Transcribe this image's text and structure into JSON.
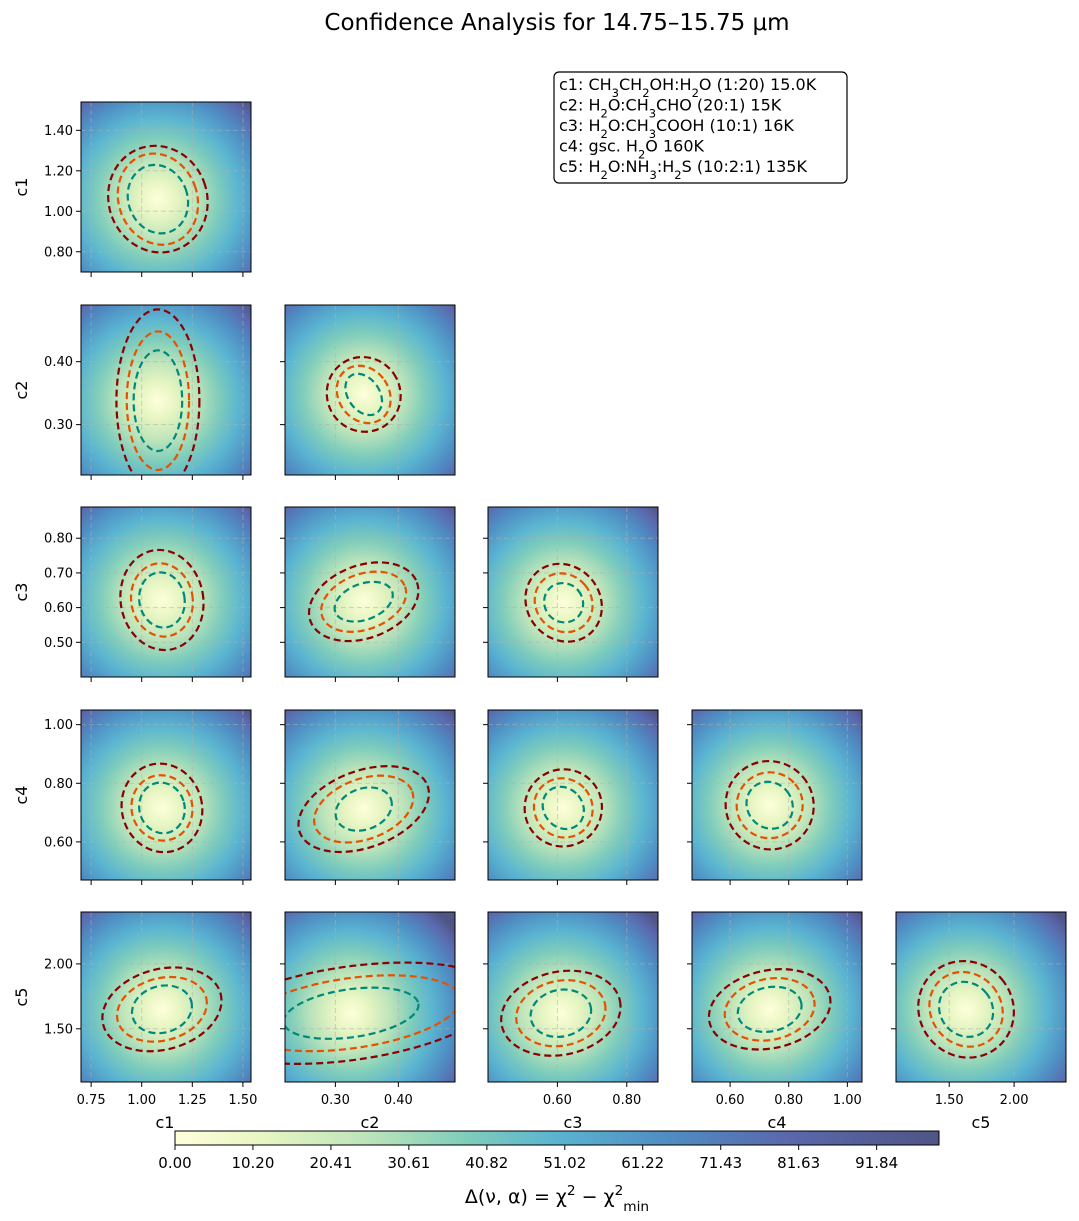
{
  "title": "Confidence Analysis for 14.75–15.75 μm",
  "legend": {
    "lines": [
      [
        {
          "t": "c1: CH"
        },
        {
          "t": "3",
          "s": "sub"
        },
        {
          "t": "CH"
        },
        {
          "t": "2",
          "s": "sub"
        },
        {
          "t": "OH:H"
        },
        {
          "t": "2",
          "s": "sub"
        },
        {
          "t": "O (1:20) 15.0K"
        }
      ],
      [
        {
          "t": "c2: H"
        },
        {
          "t": "2",
          "s": "sub"
        },
        {
          "t": "O:CH"
        },
        {
          "t": "3",
          "s": "sub"
        },
        {
          "t": "CHO (20:1) 15K"
        }
      ],
      [
        {
          "t": "c3: H"
        },
        {
          "t": "2",
          "s": "sub"
        },
        {
          "t": "O:CH"
        },
        {
          "t": "3",
          "s": "sub"
        },
        {
          "t": "COOH (10:1) 16K"
        }
      ],
      [
        {
          "t": "c4: gsc. H"
        },
        {
          "t": "2",
          "s": "sub"
        },
        {
          "t": "O 160K"
        }
      ],
      [
        {
          "t": "c5: H"
        },
        {
          "t": "2",
          "s": "sub"
        },
        {
          "t": "O:NH"
        },
        {
          "t": "3",
          "s": "sub"
        },
        {
          "t": ":H"
        },
        {
          "t": "2",
          "s": "sub"
        },
        {
          "t": "S (10:2:1) 135K"
        }
      ]
    ]
  },
  "colors": {
    "cmap": [
      "#ffffdb",
      "#e6f5c2",
      "#bde4ba",
      "#7fcdbb",
      "#5ab4d1",
      "#4f8ec4",
      "#5a68ac",
      "#4f5585"
    ],
    "contour_inner": "#00897b",
    "contour_mid": "#e65100",
    "contour_outer": "#8b0000",
    "grid": "#b0b0b0"
  },
  "chart_data": {
    "type": "heatmap",
    "layout": "corner-plot (lower triangle)",
    "params": [
      {
        "name": "c1",
        "range": [
          0.7,
          1.54
        ],
        "ticks": [
          0.75,
          1.0,
          1.25,
          1.5
        ],
        "tick_labels": [
          "0.75",
          "1.00",
          "1.25",
          "1.50"
        ],
        "y_ticks": [
          0.8,
          1.0,
          1.2,
          1.4
        ],
        "y_tick_labels": [
          "0.80",
          "1.00",
          "1.20",
          "1.40"
        ]
      },
      {
        "name": "c2",
        "range": [
          0.22,
          0.49
        ],
        "ticks": [
          0.3,
          0.4
        ],
        "tick_labels": [
          "0.30",
          "0.40"
        ],
        "y_ticks": [
          0.3,
          0.4
        ],
        "y_tick_labels": [
          "0.30",
          "0.40"
        ]
      },
      {
        "name": "c3",
        "range": [
          0.4,
          0.89
        ],
        "ticks": [
          0.6,
          0.8
        ],
        "tick_labels": [
          "0.60",
          "0.80"
        ],
        "y_ticks": [
          0.5,
          0.6,
          0.7,
          0.8
        ],
        "y_tick_labels": [
          "0.50",
          "0.60",
          "0.70",
          "0.80"
        ]
      },
      {
        "name": "c4",
        "range": [
          0.47,
          1.05
        ],
        "ticks": [
          0.6,
          0.8,
          1.0
        ],
        "tick_labels": [
          "0.60",
          "0.80",
          "1.00"
        ],
        "y_ticks": [
          0.6,
          0.8,
          1.0
        ],
        "y_tick_labels": [
          "0.60",
          "0.80",
          "1.00"
        ]
      },
      {
        "name": "c5",
        "range": [
          1.09,
          2.4
        ],
        "ticks": [
          1.5,
          2.0
        ],
        "tick_labels": [
          "1.50",
          "2.00"
        ],
        "y_ticks": [
          1.5,
          2.0
        ],
        "y_tick_labels": [
          "1.50",
          "2.00"
        ]
      }
    ],
    "panels": [
      {
        "row": 0,
        "col": 0,
        "center": [
          1.08,
          1.06
        ],
        "semi_axes": [
          [
            0.146,
            0.172
          ],
          [
            0.194,
            0.229
          ],
          [
            0.243,
            0.266
          ]
        ],
        "tilt_deg": 20
      },
      {
        "row": 1,
        "col": 0,
        "center": [
          1.08,
          0.338
        ],
        "semi_axes": [
          [
            0.12,
            0.08
          ],
          [
            0.154,
            0.11
          ],
          [
            0.205,
            0.145
          ]
        ],
        "tilt_deg": 0
      },
      {
        "row": 1,
        "col": 1,
        "center": [
          0.345,
          0.348
        ],
        "semi_axes": [
          [
            0.025,
            0.036
          ],
          [
            0.04,
            0.048
          ],
          [
            0.058,
            0.06
          ]
        ],
        "tilt_deg": 35
      },
      {
        "row": 2,
        "col": 0,
        "center": [
          1.1,
          0.622
        ],
        "semi_axes": [
          [
            0.112,
            0.08
          ],
          [
            0.152,
            0.106
          ],
          [
            0.204,
            0.145
          ]
        ],
        "tilt_deg": 10
      },
      {
        "row": 2,
        "col": 1,
        "center": [
          0.345,
          0.617
        ],
        "semi_axes": [
          [
            0.048,
            0.052
          ],
          [
            0.07,
            0.08
          ],
          [
            0.09,
            0.105
          ]
        ],
        "tilt_deg": 20
      },
      {
        "row": 2,
        "col": 2,
        "center": [
          0.618,
          0.614
        ],
        "semi_axes": [
          [
            0.055,
            0.058
          ],
          [
            0.08,
            0.088
          ],
          [
            0.105,
            0.117
          ]
        ],
        "tilt_deg": 40
      },
      {
        "row": 3,
        "col": 0,
        "center": [
          1.1,
          0.716
        ],
        "semi_axes": [
          [
            0.112,
            0.087
          ],
          [
            0.15,
            0.112
          ],
          [
            0.198,
            0.152
          ]
        ],
        "tilt_deg": 15
      },
      {
        "row": 3,
        "col": 1,
        "center": [
          0.345,
          0.712
        ],
        "semi_axes": [
          [
            0.046,
            0.07
          ],
          [
            0.082,
            0.103
          ],
          [
            0.108,
            0.131
          ]
        ],
        "tilt_deg": 20
      },
      {
        "row": 3,
        "col": 2,
        "center": [
          0.617,
          0.716
        ],
        "semi_axes": [
          [
            0.056,
            0.076
          ],
          [
            0.083,
            0.103
          ],
          [
            0.112,
            0.131
          ]
        ],
        "tilt_deg": 40
      },
      {
        "row": 3,
        "col": 3,
        "center": [
          0.735,
          0.725
        ],
        "semi_axes": [
          [
            0.076,
            0.083
          ],
          [
            0.113,
            0.112
          ],
          [
            0.149,
            0.152
          ]
        ],
        "tilt_deg": 40
      },
      {
        "row": 4,
        "col": 0,
        "center": [
          1.1,
          1.65
        ],
        "semi_axes": [
          [
            0.15,
            0.18
          ],
          [
            0.226,
            0.24
          ],
          [
            0.3,
            0.31
          ]
        ],
        "tilt_deg": 15
      },
      {
        "row": 4,
        "col": 1,
        "center": [
          0.325,
          1.62
        ],
        "semi_axes": [
          [
            0.108,
            0.185
          ],
          [
            0.175,
            0.27
          ],
          [
            0.235,
            0.36
          ]
        ],
        "tilt_deg": 8
      },
      {
        "row": 4,
        "col": 2,
        "center": [
          0.61,
          1.62
        ],
        "semi_axes": [
          [
            0.088,
            0.18
          ],
          [
            0.13,
            0.25
          ],
          [
            0.174,
            0.32
          ]
        ],
        "tilt_deg": 12
      },
      {
        "row": 4,
        "col": 3,
        "center": [
          0.735,
          1.65
        ],
        "semi_axes": [
          [
            0.11,
            0.17
          ],
          [
            0.155,
            0.235
          ],
          [
            0.21,
            0.3
          ]
        ],
        "tilt_deg": 12
      },
      {
        "row": 4,
        "col": 4,
        "center": [
          1.63,
          1.65
        ],
        "semi_axes": [
          [
            0.2,
            0.22
          ],
          [
            0.27,
            0.3
          ],
          [
            0.36,
            0.38
          ]
        ],
        "tilt_deg": 40
      }
    ],
    "colorbar": {
      "label_parts": [
        {
          "t": "Δ(ν, α) = χ"
        },
        {
          "t": "2",
          "s": "sup"
        },
        {
          "t": " − χ"
        },
        {
          "t": "2",
          "s": "sup"
        },
        {
          "t": "min",
          "s": "sub"
        }
      ],
      "range": [
        0,
        100
      ],
      "ticks": [
        0.0,
        10.2,
        20.41,
        30.61,
        40.82,
        51.02,
        61.22,
        71.43,
        81.63,
        91.84
      ],
      "tick_labels": [
        "0.00",
        "10.20",
        "20.41",
        "30.61",
        "40.82",
        "51.02",
        "61.22",
        "71.43",
        "81.63",
        "91.84"
      ]
    }
  }
}
